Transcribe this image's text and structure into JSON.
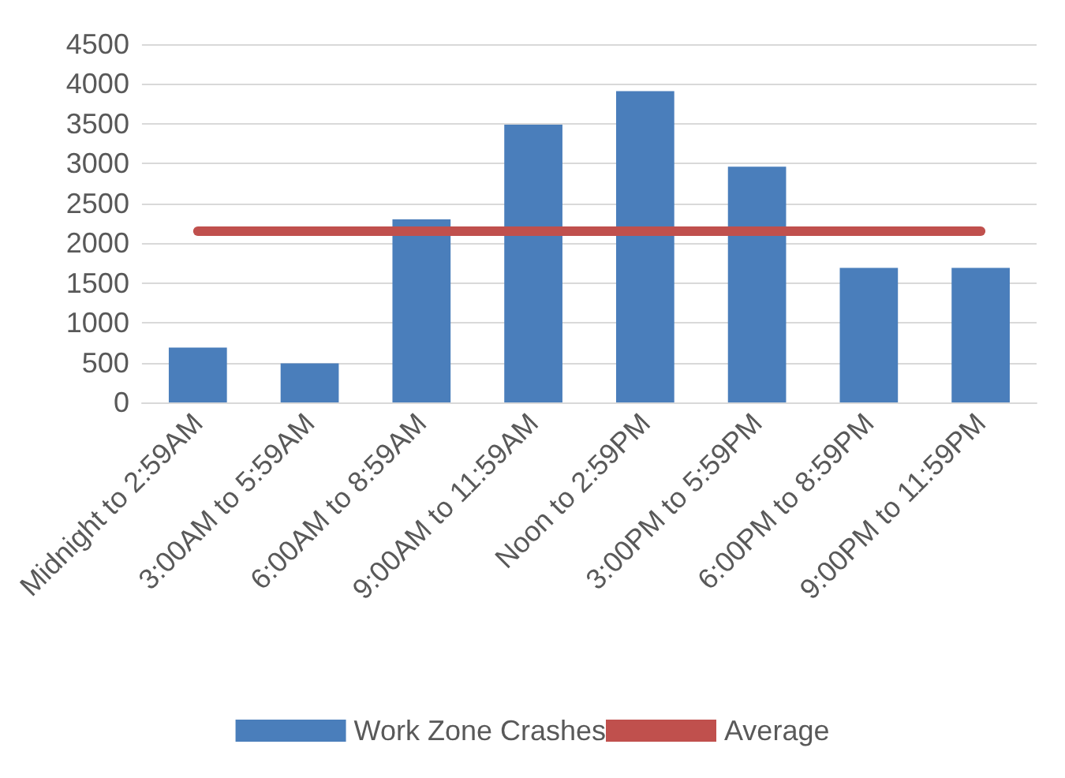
{
  "chart_data": {
    "type": "bar",
    "categories": [
      "Midnight to 2:59AM",
      "3:00AM to 5:59AM",
      "6:00AM to 8:59AM",
      "9:00AM to 11:59AM",
      "Noon to 2:59PM",
      "3:00PM to 5:59PM",
      "6:00PM to 8:59PM",
      "9:00PM to 11:59PM"
    ],
    "series": [
      {
        "name": "Work Zone Crashes",
        "color": "#4a7ebb",
        "values": [
          690,
          490,
          2300,
          3490,
          3910,
          2960,
          1690,
          1690
        ]
      },
      {
        "name": "Average",
        "type": "line",
        "color": "#c0504d",
        "values": [
          2150,
          2150,
          2150,
          2150,
          2150,
          2150,
          2150,
          2150
        ]
      }
    ],
    "ylim": [
      0,
      4500
    ],
    "yticks": [
      0,
      500,
      1000,
      1500,
      2000,
      2500,
      3000,
      3500,
      4000,
      4500
    ],
    "grid": "y",
    "legend": "bottom",
    "marker": "none",
    "line_style": "solid"
  }
}
